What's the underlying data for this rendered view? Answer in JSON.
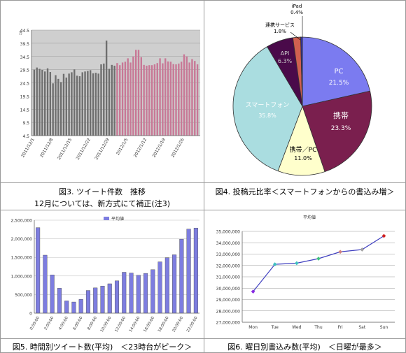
{
  "charts": {
    "fig3": {
      "caption_line1": "図3. ツイート件数　推移",
      "caption_line2": "12月については、新方式にて補正(注3)",
      "yunit": "万",
      "yticks": [
        "4.5",
        "9.5",
        "14.5",
        "19.5",
        "24.5",
        "29.5",
        "34.5",
        "39.5",
        "44.5"
      ],
      "xticks": [
        "2011/12/1",
        "2011/12/8",
        "2011/12/15",
        "2011/12/22",
        "2011/12/29",
        "2012/1/5",
        "2012/1/12",
        "2012/1/19",
        "2012/1/26"
      ]
    },
    "fig4": {
      "caption": "図4. 投稿元比率＜スマートフォンからの書込み増＞",
      "labels": {
        "pc": "PC",
        "pc_v": "21.5%",
        "kt": "携帯",
        "kt_v": "23.3%",
        "ktpc": "携帯／PC",
        "ktpc_v": "11.0%",
        "sp": "スマートフォン",
        "sp_v": "35.8%",
        "api": "API",
        "api_v": "6.3%",
        "rs": "連携サービス",
        "rs_v": "1.8%",
        "ipad": "iPad",
        "ipad_v": "0.4%"
      }
    },
    "fig5": {
      "caption": "図5. 時間別ツイート数(平均)　＜23時台がピーク＞",
      "legend": "平均値",
      "yticks": [
        "0",
        "500,000",
        "1,000,000",
        "1,500,000",
        "2,000,000",
        "2,500,000"
      ],
      "xticks": [
        "0:00:00",
        "2:00:00",
        "4:00:00",
        "6:00:00",
        "8:00:00",
        "10:00:00",
        "12:00:00",
        "14:00:00",
        "16:00:00",
        "18:00:00",
        "20:00:00",
        "22:00:00"
      ]
    },
    "fig6": {
      "caption": "図6. 曜日別書込み数(平均)　＜日曜が最多＞",
      "title": "平均値",
      "yticks": [
        "27,000,000",
        "28,000,000",
        "29,000,000",
        "30,000,000",
        "31,000,000",
        "32,000,000",
        "33,000,000",
        "34,000,000",
        "35,000,000"
      ],
      "xticks": [
        "Mon",
        "Tue",
        "Wed",
        "Thu",
        "Fri",
        "Sat",
        "Sun"
      ]
    }
  },
  "colors": {
    "fig3_dec": "#6e6e6e",
    "fig3_jan": "#c87896",
    "pc": "#7b7bf0",
    "kt": "#7a1f4e",
    "ktpc": "#ffffcc",
    "sp": "#aadde0",
    "api": "#4a0a4a",
    "rs": "#d06050",
    "ipad": "#3030a0",
    "fig5_bar": "#7d7de0",
    "fig6_line": "#4040c0"
  },
  "chart_data": [
    {
      "type": "bar",
      "title": "",
      "ylabel": "万",
      "ylim": [
        4.5,
        44.5
      ],
      "x": [
        "2011/12/1",
        "2011/12/2",
        "2011/12/3",
        "2011/12/4",
        "2011/12/5",
        "2011/12/6",
        "2011/12/7",
        "2011/12/8",
        "2011/12/9",
        "2011/12/10",
        "2011/12/11",
        "2011/12/12",
        "2011/12/13",
        "2011/12/14",
        "2011/12/15",
        "2011/12/16",
        "2011/12/17",
        "2011/12/18",
        "2011/12/19",
        "2011/12/20",
        "2011/12/21",
        "2011/12/22",
        "2011/12/23",
        "2011/12/24",
        "2011/12/25",
        "2011/12/26",
        "2011/12/27",
        "2011/12/28",
        "2011/12/29",
        "2011/12/30",
        "2011/12/31",
        "2012/1/1",
        "2012/1/2",
        "2012/1/3",
        "2012/1/4",
        "2012/1/5",
        "2012/1/6",
        "2012/1/7",
        "2012/1/8",
        "2012/1/9",
        "2012/1/10",
        "2012/1/11",
        "2012/1/12",
        "2012/1/13",
        "2012/1/14",
        "2012/1/15",
        "2012/1/16",
        "2012/1/17",
        "2012/1/18",
        "2012/1/19",
        "2012/1/20",
        "2012/1/21",
        "2012/1/22",
        "2012/1/23",
        "2012/1/24",
        "2012/1/25",
        "2012/1/26",
        "2012/1/27",
        "2012/1/28",
        "2012/1/29",
        "2012/1/30",
        "2012/1/31"
      ],
      "values": [
        29.5,
        30.3,
        29.8,
        29.4,
        28.8,
        30.0,
        28.6,
        24.3,
        27.4,
        26.0,
        24.8,
        27.9,
        26.5,
        28.0,
        28.5,
        29.6,
        27.2,
        27.0,
        28.5,
        28.8,
        29.0,
        29.3,
        28.1,
        28.3,
        28.0,
        31.5,
        31.8,
        40.5,
        29.8,
        31.3,
        31.0,
        32.0,
        31.2,
        32.2,
        32.5,
        33.8,
        32.2,
        34.5,
        37.0,
        37.0,
        34.2,
        31.3,
        31.0,
        31.2,
        31.2,
        31.5,
        32.0,
        33.8,
        31.9,
        33.8,
        32.6,
        32.5,
        31.6,
        31.5,
        31.8,
        32.5,
        35.3,
        34.5,
        32.2,
        33.5,
        32.8,
        31.5
      ],
      "colors_by_month": {
        "2011/12": "fig3_dec",
        "2012/1": "fig3_jan"
      }
    },
    {
      "type": "pie",
      "categories": [
        "PC",
        "携帯",
        "携帯／PC",
        "スマートフォン",
        "API",
        "連携サービス",
        "iPad"
      ],
      "values": [
        21.5,
        23.3,
        11.0,
        35.8,
        6.3,
        1.8,
        0.4
      ]
    },
    {
      "type": "bar",
      "series": [
        {
          "name": "平均値",
          "values": [
            2300000,
            1560000,
            1030000,
            670000,
            330000,
            300000,
            370000,
            610000,
            680000,
            730000,
            790000,
            870000,
            1100000,
            1080000,
            1020000,
            1070000,
            1170000,
            1380000,
            1490000,
            1570000,
            1990000,
            2260000,
            2290000
          ]
        }
      ],
      "categories": [
        "0:00:00",
        "1:00:00",
        "2:00:00",
        "3:00:00",
        "4:00:00",
        "5:00:00",
        "6:00:00",
        "7:00:00",
        "8:00:00",
        "9:00:00",
        "10:00:00",
        "11:00:00",
        "12:00:00",
        "13:00:00",
        "14:00:00",
        "15:00:00",
        "16:00:00",
        "17:00:00",
        "18:00:00",
        "19:00:00",
        "20:00:00",
        "21:00:00",
        "22:00:00"
      ],
      "ylim": [
        0,
        2500000
      ]
    },
    {
      "type": "line",
      "title": "平均値",
      "categories": [
        "Mon",
        "Tue",
        "Wed",
        "Thu",
        "Fri",
        "Sat",
        "Sun"
      ],
      "values": [
        29700000,
        32100000,
        32200000,
        32600000,
        33200000,
        33400000,
        34600000
      ],
      "ylim": [
        27000000,
        35000000
      ]
    }
  ]
}
